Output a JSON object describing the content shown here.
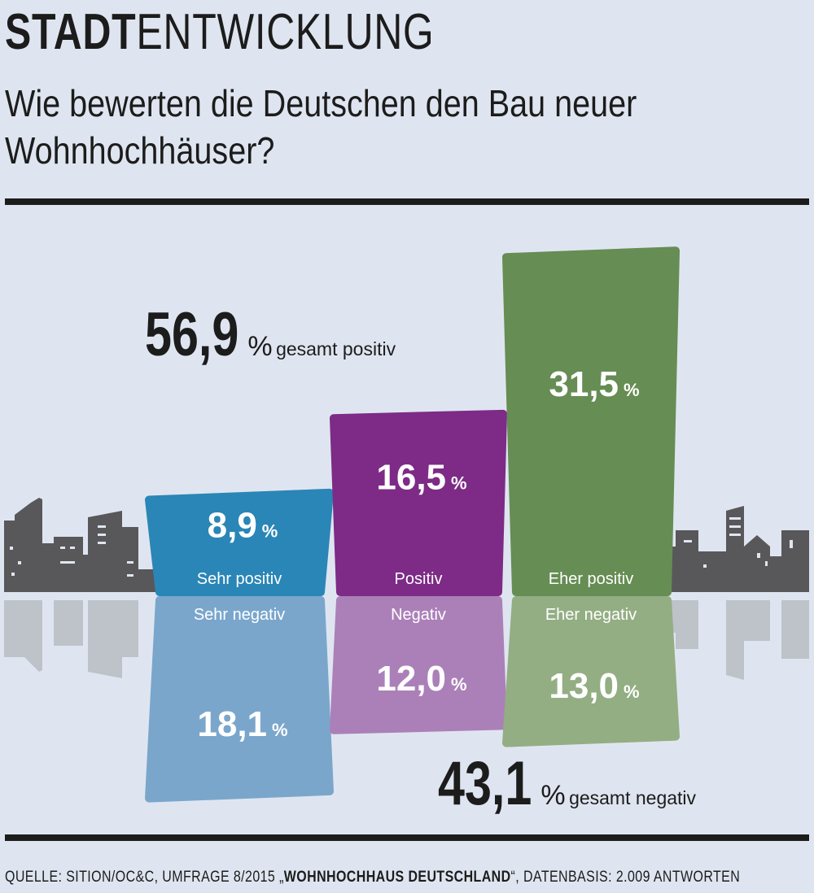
{
  "header": {
    "kicker_bold": "STADT",
    "kicker_light": "ENTWICKLUNG",
    "title": "Wie bewerten die Deutschen den Bau neuer Wohnhochhäuser?"
  },
  "footer": {
    "prefix": "QUELLE: SITION/OC&C, UMFRAGE 8/2015 „",
    "survey": "WOHNHOCHHAUS DEUTSCHLAND",
    "suffix": "“, DATENBASIS: 2.009 ANTWORTEN"
  },
  "chart_data": {
    "type": "bar",
    "totals": [
      {
        "value": "56,9",
        "unit": "%",
        "label": "gesamt positiv"
      },
      {
        "value": "43,1",
        "unit": "%",
        "label": "gesamt negativ"
      }
    ],
    "series": [
      {
        "name": "positive",
        "categories": [
          "Sehr positiv",
          "Positiv",
          "Eher positiv"
        ],
        "values": [
          8.9,
          16.5,
          31.5
        ],
        "labels": [
          "8,9",
          "16,5",
          "31,5"
        ]
      },
      {
        "name": "negative",
        "categories": [
          "Sehr negativ",
          "Negativ",
          "Eher negativ"
        ],
        "values": [
          18.1,
          12.0,
          13.0
        ],
        "labels": [
          "18,1",
          "12,0",
          "13,0"
        ]
      }
    ],
    "unit": "%",
    "colors": {
      "positive": [
        "#2a86b6",
        "#7d2b87",
        "#668d53"
      ],
      "negative": [
        "#7aa6cc",
        "#ab80b8",
        "#93ae83"
      ],
      "skyline": "#58575a",
      "reflection": "#b9bcc3"
    }
  }
}
